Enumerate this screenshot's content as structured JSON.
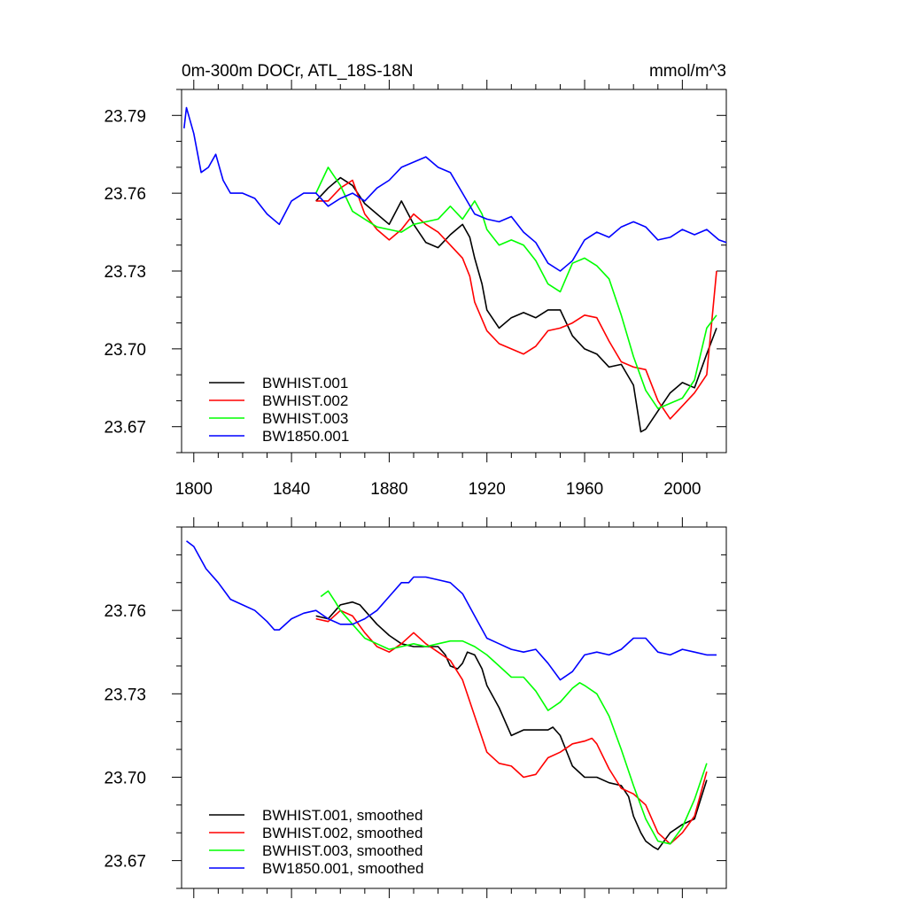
{
  "figure": {
    "title_left": "0m-300m DOCr, ATL_18S-18N",
    "title_right": "mmol/m^3"
  },
  "chart_data": [
    {
      "type": "line",
      "title": "0m-300m DOCr, ATL_18S-18N",
      "units": "mmol/m^3",
      "xlim": [
        1795,
        2018
      ],
      "ylim": [
        23.66,
        23.8
      ],
      "xticks": [
        1800,
        1840,
        1880,
        1920,
        1960,
        2000
      ],
      "xticklabels": [
        "1800",
        "1840",
        "1880",
        "1920",
        "1960",
        "2000"
      ],
      "yticks": [
        23.67,
        23.7,
        23.73,
        23.76,
        23.79
      ],
      "yticklabels": [
        "23.67",
        "23.70",
        "23.73",
        "23.76",
        "23.79"
      ],
      "legend_position": "lower-left",
      "series": [
        {
          "name": "BWHIST.001",
          "color": "#000000",
          "x": [
            1850,
            1855,
            1860,
            1865,
            1870,
            1875,
            1880,
            1885,
            1890,
            1895,
            1900,
            1905,
            1910,
            1913,
            1915,
            1918,
            1920,
            1925,
            1930,
            1935,
            1940,
            1945,
            1950,
            1955,
            1960,
            1965,
            1970,
            1975,
            1980,
            1983,
            1985,
            1990,
            1995,
            2000,
            2005,
            2010,
            2014
          ],
          "y": [
            23.757,
            23.762,
            23.766,
            23.763,
            23.756,
            23.752,
            23.748,
            23.757,
            23.748,
            23.741,
            23.739,
            23.744,
            23.748,
            23.743,
            23.735,
            23.725,
            23.715,
            23.708,
            23.712,
            23.714,
            23.712,
            23.715,
            23.715,
            23.705,
            23.7,
            23.698,
            23.693,
            23.694,
            23.686,
            23.668,
            23.669,
            23.676,
            23.683,
            23.687,
            23.685,
            23.698,
            23.708
          ]
        },
        {
          "name": "BWHIST.002",
          "color": "#ff0000",
          "x": [
            1850,
            1855,
            1860,
            1865,
            1870,
            1875,
            1880,
            1885,
            1890,
            1895,
            1900,
            1905,
            1910,
            1913,
            1915,
            1920,
            1925,
            1930,
            1935,
            1940,
            1945,
            1950,
            1955,
            1960,
            1965,
            1970,
            1975,
            1980,
            1985,
            1990,
            1995,
            2000,
            2005,
            2010,
            2014
          ],
          "y": [
            23.757,
            23.757,
            23.762,
            23.765,
            23.752,
            23.746,
            23.742,
            23.746,
            23.752,
            23.748,
            23.745,
            23.74,
            23.735,
            23.728,
            23.718,
            23.707,
            23.702,
            23.7,
            23.698,
            23.701,
            23.707,
            23.708,
            23.71,
            23.713,
            23.712,
            23.703,
            23.695,
            23.693,
            23.692,
            23.68,
            23.673,
            23.678,
            23.683,
            23.69,
            23.73
          ]
        },
        {
          "name": "BWHIST.003",
          "color": "#00ff00",
          "x": [
            1850,
            1855,
            1860,
            1865,
            1870,
            1875,
            1880,
            1885,
            1890,
            1895,
            1900,
            1905,
            1910,
            1915,
            1918,
            1920,
            1925,
            1930,
            1935,
            1940,
            1945,
            1950,
            1955,
            1960,
            1965,
            1970,
            1975,
            1980,
            1985,
            1990,
            1995,
            2000,
            2005,
            2010,
            2014
          ],
          "y": [
            23.76,
            23.77,
            23.763,
            23.753,
            23.75,
            23.747,
            23.746,
            23.745,
            23.748,
            23.749,
            23.75,
            23.755,
            23.75,
            23.757,
            23.752,
            23.746,
            23.74,
            23.742,
            23.74,
            23.734,
            23.725,
            23.722,
            23.733,
            23.735,
            23.732,
            23.727,
            23.713,
            23.697,
            23.684,
            23.677,
            23.679,
            23.681,
            23.688,
            23.708,
            23.713
          ]
        },
        {
          "name": "BW1850.001",
          "color": "#0000ff",
          "x": [
            1796,
            1797,
            1800,
            1803,
            1806,
            1809,
            1812,
            1815,
            1820,
            1825,
            1830,
            1835,
            1840,
            1845,
            1850,
            1855,
            1860,
            1865,
            1870,
            1875,
            1880,
            1885,
            1890,
            1895,
            1900,
            1905,
            1910,
            1915,
            1920,
            1925,
            1930,
            1935,
            1940,
            1945,
            1950,
            1955,
            1960,
            1965,
            1970,
            1975,
            1980,
            1985,
            1990,
            1995,
            2000,
            2005,
            2010,
            2015,
            2018
          ],
          "y": [
            23.785,
            23.793,
            23.783,
            23.768,
            23.77,
            23.775,
            23.765,
            23.76,
            23.76,
            23.758,
            23.752,
            23.748,
            23.757,
            23.76,
            23.76,
            23.755,
            23.758,
            23.76,
            23.757,
            23.762,
            23.765,
            23.77,
            23.772,
            23.774,
            23.77,
            23.768,
            23.76,
            23.752,
            23.75,
            23.749,
            23.751,
            23.745,
            23.741,
            23.733,
            23.73,
            23.734,
            23.742,
            23.745,
            23.743,
            23.747,
            23.749,
            23.747,
            23.742,
            23.743,
            23.746,
            23.744,
            23.746,
            23.742,
            23.741
          ]
        }
      ]
    },
    {
      "type": "line",
      "title": "",
      "xlim": [
        1795,
        2018
      ],
      "ylim": [
        23.66,
        23.79
      ],
      "xticks": [
        1800,
        1840,
        1880,
        1920,
        1960,
        2000
      ],
      "yticks": [
        23.67,
        23.7,
        23.73,
        23.76
      ],
      "yticklabels": [
        "23.67",
        "23.70",
        "23.73",
        "23.76"
      ],
      "legend_position": "lower-left",
      "series": [
        {
          "name": "BWHIST.001, smoothed",
          "color": "#000000",
          "x": [
            1850,
            1855,
            1860,
            1865,
            1868,
            1870,
            1875,
            1880,
            1885,
            1890,
            1895,
            1900,
            1903,
            1905,
            1908,
            1910,
            1912,
            1915,
            1918,
            1920,
            1925,
            1930,
            1935,
            1940,
            1945,
            1947,
            1950,
            1955,
            1960,
            1965,
            1970,
            1975,
            1978,
            1980,
            1983,
            1985,
            1988,
            1990,
            1995,
            2000,
            2005,
            2010
          ],
          "y": [
            23.758,
            23.757,
            23.762,
            23.763,
            23.762,
            23.76,
            23.755,
            23.751,
            23.748,
            23.747,
            23.747,
            23.747,
            23.744,
            23.74,
            23.739,
            23.741,
            23.745,
            23.744,
            23.739,
            23.733,
            23.725,
            23.715,
            23.717,
            23.717,
            23.717,
            23.718,
            23.715,
            23.704,
            23.7,
            23.7,
            23.698,
            23.697,
            23.693,
            23.686,
            23.68,
            23.677,
            23.675,
            23.674,
            23.68,
            23.683,
            23.685,
            23.699
          ]
        },
        {
          "name": "BWHIST.002, smoothed",
          "color": "#ff0000",
          "x": [
            1850,
            1855,
            1860,
            1865,
            1870,
            1875,
            1880,
            1885,
            1890,
            1895,
            1900,
            1905,
            1910,
            1915,
            1920,
            1925,
            1930,
            1935,
            1940,
            1945,
            1950,
            1955,
            1960,
            1963,
            1965,
            1970,
            1975,
            1980,
            1985,
            1990,
            1995,
            2000,
            2005,
            2010
          ],
          "y": [
            23.757,
            23.756,
            23.76,
            23.758,
            23.752,
            23.747,
            23.745,
            23.748,
            23.752,
            23.748,
            23.745,
            23.742,
            23.735,
            23.722,
            23.709,
            23.705,
            23.704,
            23.7,
            23.701,
            23.707,
            23.709,
            23.712,
            23.713,
            23.714,
            23.712,
            23.703,
            23.696,
            23.694,
            23.69,
            23.68,
            23.676,
            23.68,
            23.686,
            23.702
          ]
        },
        {
          "name": "BWHIST.003, smoothed",
          "color": "#00ff00",
          "x": [
            1852,
            1855,
            1858,
            1860,
            1865,
            1870,
            1875,
            1880,
            1885,
            1890,
            1895,
            1900,
            1905,
            1910,
            1915,
            1920,
            1925,
            1930,
            1935,
            1940,
            1945,
            1950,
            1955,
            1958,
            1960,
            1965,
            1970,
            1975,
            1980,
            1985,
            1990,
            1995,
            2000,
            2005,
            2010
          ],
          "y": [
            23.765,
            23.767,
            23.763,
            23.76,
            23.755,
            23.75,
            23.748,
            23.746,
            23.747,
            23.748,
            23.747,
            23.748,
            23.749,
            23.749,
            23.747,
            23.744,
            23.74,
            23.736,
            23.736,
            23.731,
            23.724,
            23.727,
            23.732,
            23.734,
            23.733,
            23.73,
            23.722,
            23.71,
            23.697,
            23.685,
            23.677,
            23.676,
            23.682,
            23.692,
            23.705
          ]
        },
        {
          "name": "BW1850.001, smoothed",
          "color": "#0000ff",
          "x": [
            1797,
            1800,
            1805,
            1810,
            1815,
            1820,
            1825,
            1830,
            1833,
            1835,
            1840,
            1845,
            1850,
            1855,
            1860,
            1865,
            1870,
            1875,
            1880,
            1885,
            1888,
            1890,
            1895,
            1900,
            1905,
            1910,
            1915,
            1920,
            1925,
            1930,
            1935,
            1940,
            1945,
            1950,
            1955,
            1960,
            1965,
            1970,
            1975,
            1980,
            1985,
            1990,
            1995,
            2000,
            2005,
            2010,
            2014
          ],
          "y": [
            23.785,
            23.783,
            23.775,
            23.77,
            23.764,
            23.762,
            23.76,
            23.756,
            23.753,
            23.753,
            23.757,
            23.759,
            23.76,
            23.757,
            23.755,
            23.755,
            23.757,
            23.76,
            23.765,
            23.77,
            23.77,
            23.772,
            23.772,
            23.771,
            23.77,
            23.766,
            23.758,
            23.75,
            23.748,
            23.746,
            23.745,
            23.746,
            23.741,
            23.735,
            23.738,
            23.744,
            23.745,
            23.744,
            23.746,
            23.75,
            23.75,
            23.745,
            23.744,
            23.746,
            23.745,
            23.744,
            23.744
          ]
        }
      ]
    }
  ]
}
